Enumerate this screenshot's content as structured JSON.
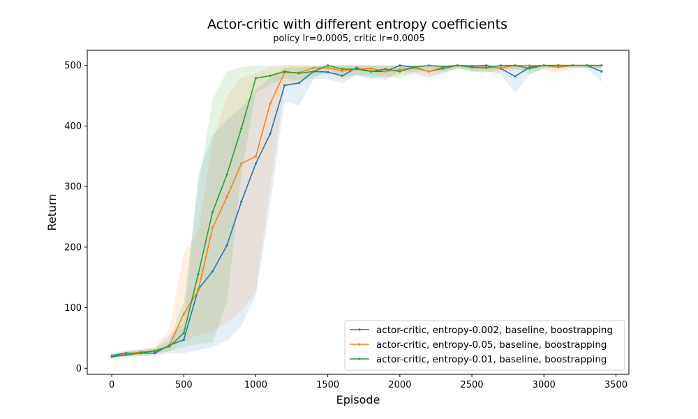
{
  "chart_data": {
    "type": "line",
    "title": "Actor-critic with different entropy coefficients",
    "subtitle": "policy lr=0.0005, critic lr=0.0005",
    "xlabel": "Episode",
    "ylabel": "Return",
    "xlim": [
      -170,
      3590
    ],
    "ylim": [
      -10,
      525
    ],
    "xticks": [
      0,
      500,
      1000,
      1500,
      2000,
      2500,
      3000,
      3500
    ],
    "yticks": [
      0,
      100,
      200,
      300,
      400,
      500
    ],
    "grid": false,
    "legend_position": "bottom-right",
    "x": [
      0,
      100,
      200,
      300,
      400,
      500,
      600,
      700,
      800,
      900,
      1000,
      1100,
      1200,
      1300,
      1400,
      1500,
      1600,
      1700,
      1800,
      1900,
      2000,
      2100,
      2200,
      2300,
      2400,
      2500,
      2600,
      2700,
      2800,
      2900,
      3000,
      3100,
      3200,
      3300,
      3400
    ],
    "series": [
      {
        "name": "actor-critic, entropy-0.002, baseline, boostrapping",
        "color": "#1f77b4",
        "values": [
          21,
          25,
          25,
          25,
          38,
          47,
          130,
          160,
          203,
          275,
          338,
          387,
          467,
          471,
          490,
          489,
          483,
          496,
          490,
          490,
          500,
          497,
          490,
          495,
          500,
          499,
          500,
          495,
          482,
          497,
          500,
          500,
          500,
          500,
          490
        ],
        "lower": [
          17,
          20,
          20,
          20,
          25,
          25,
          30,
          35,
          45,
          70,
          120,
          270,
          440,
          434,
          477,
          478,
          470,
          485,
          479,
          476,
          491,
          488,
          482,
          486,
          496,
          491,
          491,
          485,
          455,
          484,
          496,
          496,
          498,
          496,
          473
        ],
        "upper": [
          25,
          30,
          30,
          32,
          55,
          75,
          320,
          385,
          410,
          430,
          460,
          480,
          495,
          497,
          498,
          500,
          500,
          500,
          500,
          500,
          500,
          500,
          500,
          500,
          500,
          500,
          500,
          500,
          500,
          500,
          500,
          500,
          500,
          500,
          500
        ]
      },
      {
        "name": "actor-critic, entropy-0.05, baseline, boostrapping",
        "color": "#ff7f0e",
        "values": [
          20,
          23,
          27,
          28,
          37,
          90,
          128,
          232,
          283,
          338,
          350,
          437,
          488,
          488,
          496,
          496,
          491,
          494,
          495,
          490,
          493,
          496,
          490,
          497,
          500,
          497,
          497,
          496,
          500,
          500,
          500,
          497,
          500,
          500,
          500
        ],
        "lower": [
          17,
          20,
          22,
          24,
          28,
          45,
          55,
          60,
          75,
          95,
          125,
          300,
          465,
          470,
          483,
          486,
          477,
          484,
          486,
          479,
          484,
          486,
          480,
          488,
          495,
          490,
          489,
          488,
          493,
          493,
          493,
          488,
          495,
          495,
          495
        ],
        "upper": [
          24,
          28,
          32,
          35,
          65,
          190,
          225,
          375,
          450,
          480,
          487,
          497,
          500,
          500,
          500,
          500,
          500,
          500,
          500,
          500,
          500,
          500,
          500,
          500,
          500,
          500,
          500,
          500,
          500,
          500,
          500,
          500,
          500,
          500,
          500
        ]
      },
      {
        "name": "actor-critic, entropy-0.01, baseline, boostrapping",
        "color": "#2ca02c",
        "values": [
          19,
          22,
          25,
          29,
          36,
          58,
          155,
          258,
          320,
          396,
          479,
          483,
          490,
          487,
          490,
          500,
          494,
          494,
          490,
          494,
          490,
          497,
          500,
          498,
          500,
          497,
          496,
          500,
          500,
          495,
          500,
          500,
          500,
          500,
          500
        ],
        "lower": [
          16,
          18,
          21,
          24,
          28,
          35,
          40,
          42,
          110,
          320,
          455,
          468,
          478,
          475,
          478,
          493,
          483,
          483,
          478,
          483,
          478,
          489,
          495,
          490,
          495,
          489,
          488,
          494,
          494,
          486,
          495,
          495,
          495,
          495,
          495
        ],
        "upper": [
          23,
          26,
          30,
          34,
          45,
          110,
          300,
          445,
          490,
          497,
          500,
          500,
          500,
          500,
          500,
          500,
          500,
          500,
          500,
          500,
          500,
          500,
          500,
          500,
          500,
          500,
          500,
          500,
          500,
          500,
          500,
          500,
          500,
          500,
          500
        ]
      }
    ]
  }
}
